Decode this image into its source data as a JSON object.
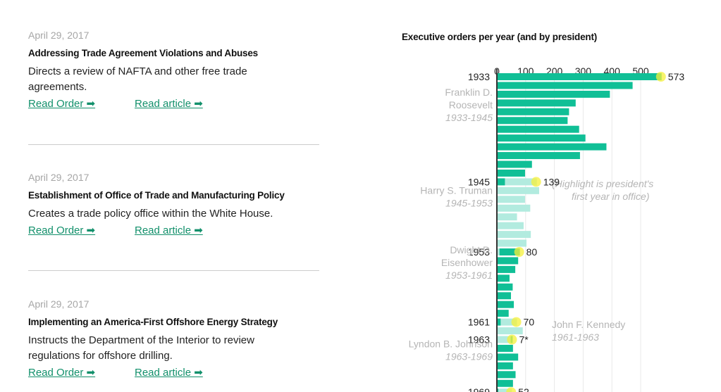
{
  "orders": [
    {
      "date": "April 29, 2017",
      "title": "Addressing Trade Agreement Violations and Abuses",
      "desc_lines": [
        "Directs a review of NAFTA and other free trade",
        "agreements."
      ],
      "read_order": "Read Order ➡",
      "read_article": "Read article ➡"
    },
    {
      "date": "April 29, 2017",
      "title": "Establishment of Office of Trade and Manufacturing Policy",
      "desc_lines": [
        "Creates a trade policy office within the White House."
      ],
      "read_order": "Read Order ➡",
      "read_article": "Read article ➡"
    },
    {
      "date": "April 29, 2017",
      "title": "Implementing an America-First Offshore Energy Strategy",
      "desc_lines": [
        "Instructs the Department of the Interior to review",
        "regulations for offshore drilling."
      ],
      "read_order": "Read Order ➡",
      "read_article": "Read article ➡"
    }
  ],
  "colors": {
    "dark": "#10bf96",
    "light": "#b2ebdf",
    "highlight": "#f5f03a",
    "link": "#12906b"
  },
  "chart_data": {
    "type": "bar",
    "orientation": "horizontal",
    "title": "Executive orders per year (and by president)",
    "xticks": [
      0,
      100,
      200,
      300,
      400,
      500
    ],
    "xlim": [
      0,
      600
    ],
    "note": [
      "(Highlight is president's",
      "first year in office)"
    ],
    "rows": [
      {
        "year": 1933,
        "value": 573,
        "label": "1933",
        "shade": "dark",
        "highlight": true,
        "show_value": "573"
      },
      {
        "year": 1934,
        "value": 472,
        "shade": "dark"
      },
      {
        "year": 1935,
        "value": 393,
        "shade": "dark"
      },
      {
        "year": 1936,
        "value": 274,
        "shade": "dark"
      },
      {
        "year": 1937,
        "value": 251,
        "shade": "dark"
      },
      {
        "year": 1938,
        "value": 246,
        "shade": "dark"
      },
      {
        "year": 1939,
        "value": 286,
        "shade": "dark"
      },
      {
        "year": 1940,
        "value": 308,
        "shade": "dark"
      },
      {
        "year": 1941,
        "value": 381,
        "shade": "dark"
      },
      {
        "year": 1942,
        "value": 289,
        "shade": "dark"
      },
      {
        "year": 1943,
        "value": 122,
        "shade": "dark"
      },
      {
        "year": 1944,
        "value": 98,
        "shade": "dark"
      },
      {
        "year": 1945,
        "value": 139,
        "prev": 28,
        "label": "1945",
        "shade": "light",
        "highlight": true,
        "show_value": "139"
      },
      {
        "year": 1946,
        "value": 147,
        "shade": "light"
      },
      {
        "year": 1947,
        "value": 98,
        "shade": "light"
      },
      {
        "year": 1948,
        "value": 116,
        "shade": "light"
      },
      {
        "year": 1949,
        "value": 70,
        "shade": "light"
      },
      {
        "year": 1950,
        "value": 93,
        "shade": "light"
      },
      {
        "year": 1951,
        "value": 118,
        "shade": "light"
      },
      {
        "year": 1952,
        "value": 103,
        "shade": "light"
      },
      {
        "year": 1953,
        "value": 80,
        "prev": 9,
        "label": "1953",
        "shade": "dark",
        "prevShade": "light",
        "highlight": true,
        "show_value": "80"
      },
      {
        "year": 1954,
        "value": 74,
        "shade": "dark"
      },
      {
        "year": 1955,
        "value": 64,
        "shade": "dark"
      },
      {
        "year": 1956,
        "value": 44,
        "shade": "dark"
      },
      {
        "year": 1957,
        "value": 55,
        "shade": "dark"
      },
      {
        "year": 1958,
        "value": 49,
        "shade": "dark"
      },
      {
        "year": 1959,
        "value": 59,
        "shade": "dark"
      },
      {
        "year": 1960,
        "value": 41,
        "shade": "dark"
      },
      {
        "year": 1961,
        "value": 70,
        "prev": 13,
        "label": "1961",
        "shade": "light",
        "highlight": true,
        "show_value": "70"
      },
      {
        "year": 1962,
        "value": 90,
        "shade": "light"
      },
      {
        "year": 1963,
        "value": 55,
        "prev": 48,
        "label": "1963",
        "shade": "dark",
        "prevShade": "light",
        "highlight": true,
        "show_value": "7*"
      },
      {
        "year": 1964,
        "value": 56,
        "shade": "dark"
      },
      {
        "year": 1965,
        "value": 74,
        "shade": "dark"
      },
      {
        "year": 1966,
        "value": 56,
        "shade": "dark"
      },
      {
        "year": 1967,
        "value": 65,
        "shade": "dark"
      },
      {
        "year": 1968,
        "value": 56,
        "shade": "dark"
      },
      {
        "year": 1969,
        "value": 52,
        "prev": 5,
        "label": "1969",
        "shade": "light",
        "highlight": true,
        "show_value": "52"
      }
    ],
    "presidents": [
      {
        "name_lines": [
          "Franklin D.",
          "Roosevelt"
        ],
        "years": "1933-1945",
        "row": 4
      },
      {
        "name_lines": [
          "Harry S. Truman"
        ],
        "years": "1945-1953",
        "row": 14.5
      },
      {
        "name_lines": [
          "Dwight D.",
          "Eisenhower"
        ],
        "years": "1953-1961",
        "row": 22
      },
      {
        "name_lines": [
          "John F. Kennedy"
        ],
        "years": "1961-1963",
        "row": 29,
        "side": "right"
      },
      {
        "name_lines": [
          "Lyndon B. Johnson"
        ],
        "years": "1963-1969",
        "row": 32
      }
    ]
  }
}
